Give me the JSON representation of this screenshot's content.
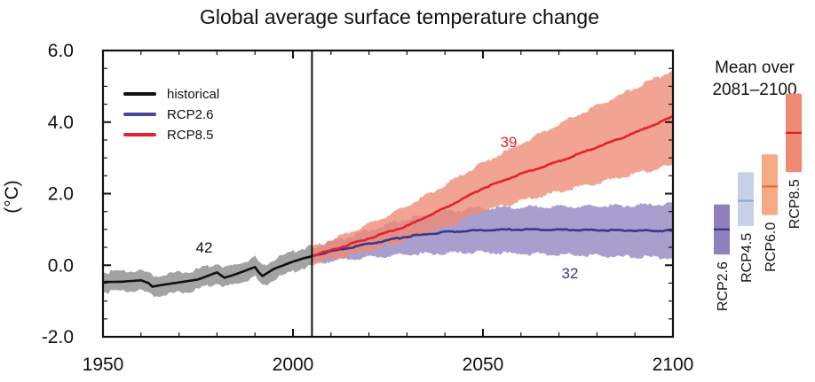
{
  "chart_data": {
    "type": "line",
    "title": "Global average surface temperature change",
    "xlabel": "",
    "ylabel": "(°C)",
    "xlim": [
      1950,
      2100
    ],
    "ylim": [
      -2.0,
      6.0
    ],
    "x_ticks": [
      1950,
      2000,
      2050,
      2100
    ],
    "x_tick_labels": [
      "1950",
      "2000",
      "2050",
      "2100"
    ],
    "y_ticks": [
      -2.0,
      0.0,
      2.0,
      4.0,
      6.0
    ],
    "y_tick_labels": [
      "-2.0",
      "0.0",
      "2.0",
      "4.0",
      "6.0"
    ],
    "grid": false,
    "divider_year": 2005,
    "legend": {
      "placement": "top-left",
      "entries": [
        {
          "label": "historical",
          "color": "#111111"
        },
        {
          "label": "RCP2.6",
          "color": "#4a4594"
        },
        {
          "label": "RCP8.5",
          "color": "#e8202a"
        }
      ]
    },
    "series": [
      {
        "name": "historical",
        "model_count": "42",
        "line_color": "#111111",
        "band_color": "#a3a3a3",
        "x": [
          1950,
          1955,
          1960,
          1962,
          1963,
          1965,
          1970,
          1975,
          1980,
          1982,
          1985,
          1990,
          1991,
          1992,
          1995,
          2000,
          2003,
          2005
        ],
        "mean": [
          -0.47,
          -0.46,
          -0.42,
          -0.5,
          -0.6,
          -0.56,
          -0.48,
          -0.4,
          -0.2,
          -0.35,
          -0.25,
          -0.05,
          -0.2,
          -0.3,
          -0.1,
          0.1,
          0.2,
          0.25
        ],
        "upper": [
          -0.2,
          -0.18,
          -0.15,
          -0.22,
          -0.32,
          -0.28,
          -0.2,
          -0.12,
          0.07,
          -0.08,
          0.02,
          0.22,
          0.07,
          -0.02,
          0.18,
          0.38,
          0.48,
          0.53
        ],
        "lower": [
          -0.74,
          -0.74,
          -0.7,
          -0.78,
          -0.88,
          -0.84,
          -0.76,
          -0.68,
          -0.48,
          -0.62,
          -0.52,
          -0.33,
          -0.48,
          -0.58,
          -0.38,
          -0.18,
          -0.07,
          -0.03
        ]
      },
      {
        "name": "RCP2.6",
        "model_count": "32",
        "line_color": "#3b3689",
        "band_color": "#8f84c0",
        "x": [
          2005,
          2010,
          2020,
          2030,
          2040,
          2050,
          2060,
          2070,
          2080,
          2090,
          2100
        ],
        "mean": [
          0.27,
          0.38,
          0.6,
          0.8,
          0.93,
          0.98,
          1.0,
          0.99,
          0.98,
          0.97,
          0.96
        ],
        "upper": [
          0.5,
          0.65,
          0.98,
          1.3,
          1.5,
          1.6,
          1.62,
          1.64,
          1.65,
          1.68,
          1.7
        ],
        "lower": [
          0.05,
          0.12,
          0.22,
          0.3,
          0.34,
          0.35,
          0.33,
          0.3,
          0.26,
          0.23,
          0.2
        ]
      },
      {
        "name": "RCP8.5",
        "model_count": "39",
        "line_color": "#e8202a",
        "band_color": "#ee8a73",
        "x": [
          2005,
          2010,
          2020,
          2030,
          2040,
          2050,
          2060,
          2070,
          2080,
          2090,
          2100
        ],
        "mean": [
          0.27,
          0.42,
          0.75,
          1.1,
          1.6,
          2.15,
          2.55,
          2.9,
          3.3,
          3.7,
          4.15
        ],
        "upper": [
          0.5,
          0.7,
          1.15,
          1.65,
          2.25,
          2.85,
          3.4,
          3.95,
          4.45,
          4.95,
          5.45
        ],
        "lower": [
          0.05,
          0.16,
          0.4,
          0.7,
          1.05,
          1.5,
          1.8,
          2.05,
          2.3,
          2.55,
          2.8
        ]
      }
    ],
    "side_panel": {
      "title_line1": "Mean over",
      "title_line2": "2081–2100",
      "bars": [
        {
          "name": "RCP2.6",
          "mean": 1.0,
          "low": 0.3,
          "high": 1.7,
          "band_color": "#8e80bc",
          "line_color": "#3b3689"
        },
        {
          "name": "RCP4.5",
          "mean": 1.8,
          "low": 1.1,
          "high": 2.6,
          "band_color": "#c6d0e6",
          "line_color": "#8fa6d0"
        },
        {
          "name": "RCP6.0",
          "mean": 2.2,
          "low": 1.4,
          "high": 3.1,
          "band_color": "#f4aa84",
          "line_color": "#e86a2e"
        },
        {
          "name": "RCP8.5",
          "mean": 3.7,
          "low": 2.6,
          "high": 4.8,
          "band_color": "#ee8a73",
          "line_color": "#e01e2a"
        }
      ]
    }
  }
}
